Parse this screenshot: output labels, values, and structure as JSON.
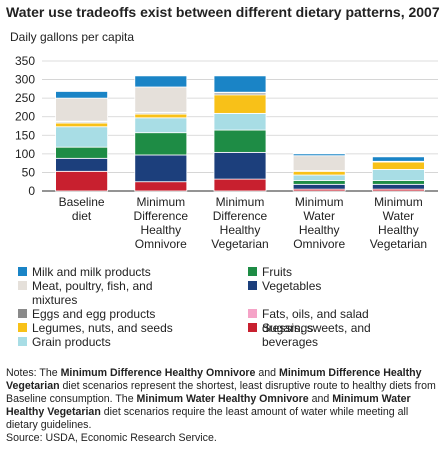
{
  "title": "Water use tradeoffs exist between different dietary patterns, 2007",
  "chart_data": {
    "type": "bar",
    "stacked": true,
    "ylabel": "Daily gallons per capita",
    "ylim": [
      0,
      350
    ],
    "yticks": [
      0,
      50,
      100,
      150,
      200,
      250,
      300,
      350
    ],
    "grid": true,
    "legend_position": "bottom",
    "categories": [
      [
        "Baseline",
        "diet"
      ],
      [
        "Minimum",
        "Difference",
        "Healthy",
        "Omnivore"
      ],
      [
        "Minimum",
        "Difference",
        "Healthy",
        "Vegetarian"
      ],
      [
        "Minimum",
        "Water",
        "Healthy",
        "Omnivore"
      ],
      [
        "Minimum",
        "Water",
        "Healthy",
        "Vegetarian"
      ]
    ],
    "series": [
      {
        "name": "Sugars, sweets, and beverages",
        "color": "#c8202f",
        "values": [
          53,
          25,
          32,
          5,
          5
        ]
      },
      {
        "name": "Vegetables",
        "color": "#1c3f7c",
        "values": [
          35,
          72,
          72,
          13,
          13
        ]
      },
      {
        "name": "Fruits",
        "color": "#1e8c45",
        "values": [
          30,
          60,
          60,
          10,
          10
        ]
      },
      {
        "name": "Grain products",
        "color": "#a8dde5",
        "values": [
          55,
          40,
          45,
          15,
          30
        ]
      },
      {
        "name": "Legumes, nuts, and seeds",
        "color": "#f8c118",
        "values": [
          10,
          10,
          50,
          10,
          20
        ]
      },
      {
        "name": "Eggs and egg products",
        "color": "#8a8a8a",
        "values": [
          3,
          3,
          5,
          1,
          1
        ]
      },
      {
        "name": "Fats, oils, and salad dressings",
        "color": "#f5a3c7",
        "values": [
          2,
          2,
          2,
          1,
          1
        ]
      },
      {
        "name": "Meat, poultry, fish, and mixtures",
        "color": "#e5e0da",
        "values": [
          62,
          68,
          0,
          40,
          0
        ]
      },
      {
        "name": "Milk and milk products",
        "color": "#1a84c6",
        "values": [
          18,
          30,
          44,
          5,
          12
        ]
      }
    ]
  },
  "legend": [
    {
      "label": "Milk and milk products",
      "color": "#1a84c6"
    },
    {
      "label": "Fruits",
      "color": "#1e8c45"
    },
    {
      "label": "Meat, poultry, fish, and mixtures",
      "color": "#e5e0da"
    },
    {
      "label": "Vegetables",
      "color": "#1c3f7c"
    },
    {
      "label": "Eggs and egg products",
      "color": "#8a8a8a"
    },
    {
      "label": "Fats, oils, and salad dressings",
      "color": "#f5a3c7"
    },
    {
      "label": "Legumes, nuts, and seeds",
      "color": "#f8c118"
    },
    {
      "label": "Sugars, sweets, and beverages",
      "color": "#c8202f"
    },
    {
      "label": "Grain products",
      "color": "#a8dde5"
    }
  ],
  "notes": {
    "p1": "Notes: The ",
    "b1": "Minimum Difference Healthy Omnivore",
    "p2": " and ",
    "b2": "Minimum Difference Healthy Vegetarian",
    "p3": " diet scenarios represent the shortest, least disruptive route to healthy diets from Baseline consumption. The ",
    "b3": "Minimum Water Healthy Omnivore",
    "p4": " and ",
    "b4": "Minimum Water Healthy Vegetarian",
    "p5": " diet scenarios require the least amount of water while meeting all dietary guidelines."
  },
  "source": "Source: USDA, Economic Research Service."
}
